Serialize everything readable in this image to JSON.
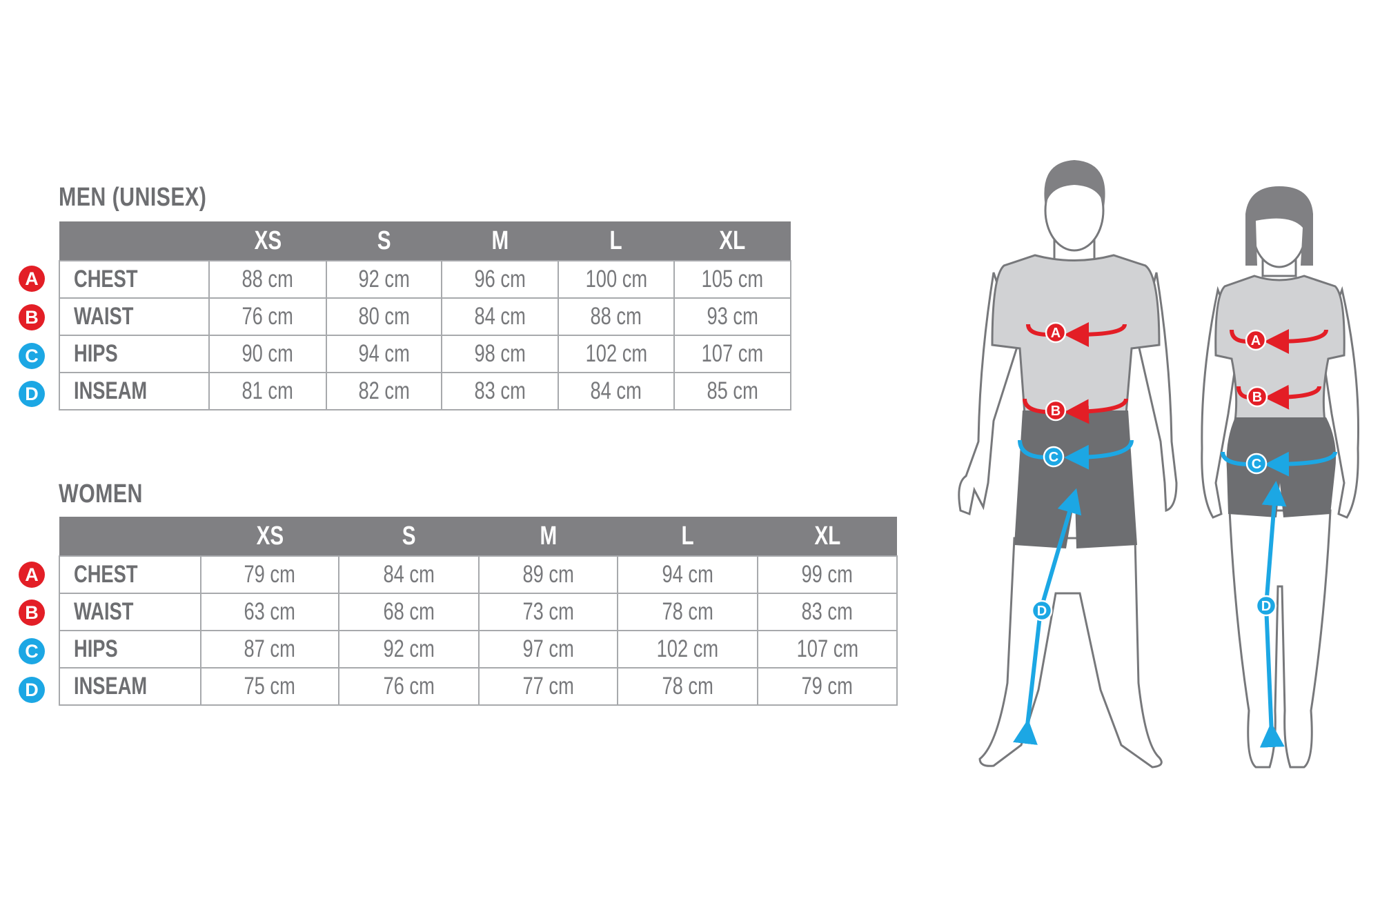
{
  "colors": {
    "header": "#808083",
    "text": "#6d6e71",
    "red": "#e31e26",
    "blue": "#1ca7e4",
    "shirt": "#d1d2d4",
    "shorts": "#6d6e71"
  },
  "men": {
    "title": "MEN (UNISEX)",
    "sizes": [
      "XS",
      "S",
      "M",
      "L",
      "XL"
    ],
    "rows": [
      {
        "badge": "A",
        "label": "CHEST",
        "values": [
          "88 cm",
          "92 cm",
          "96 cm",
          "100 cm",
          "105 cm"
        ]
      },
      {
        "badge": "B",
        "label": "WAIST",
        "values": [
          "76 cm",
          "80 cm",
          "84 cm",
          "88 cm",
          "93 cm"
        ]
      },
      {
        "badge": "C",
        "label": "HIPS",
        "values": [
          "90 cm",
          "94 cm",
          "98 cm",
          "102 cm",
          "107 cm"
        ]
      },
      {
        "badge": "D",
        "label": "INSEAM",
        "values": [
          "81 cm",
          "82 cm",
          "83 cm",
          "84 cm",
          "85 cm"
        ]
      }
    ]
  },
  "women": {
    "title": "WOMEN",
    "sizes": [
      "XS",
      "S",
      "M",
      "L",
      "XL"
    ],
    "rows": [
      {
        "badge": "A",
        "label": "CHEST",
        "values": [
          "79 cm",
          "84 cm",
          "89 cm",
          "94 cm",
          "99 cm"
        ]
      },
      {
        "badge": "B",
        "label": "WAIST",
        "values": [
          "63 cm",
          "68 cm",
          "73 cm",
          "78 cm",
          "83 cm"
        ]
      },
      {
        "badge": "C",
        "label": "HIPS",
        "values": [
          "87 cm",
          "92 cm",
          "97 cm",
          "102 cm",
          "107 cm"
        ]
      },
      {
        "badge": "D",
        "label": "INSEAM",
        "values": [
          "75 cm",
          "76 cm",
          "77 cm",
          "78 cm",
          "79 cm"
        ]
      }
    ]
  },
  "figure_markers": [
    "A",
    "B",
    "C",
    "D"
  ]
}
